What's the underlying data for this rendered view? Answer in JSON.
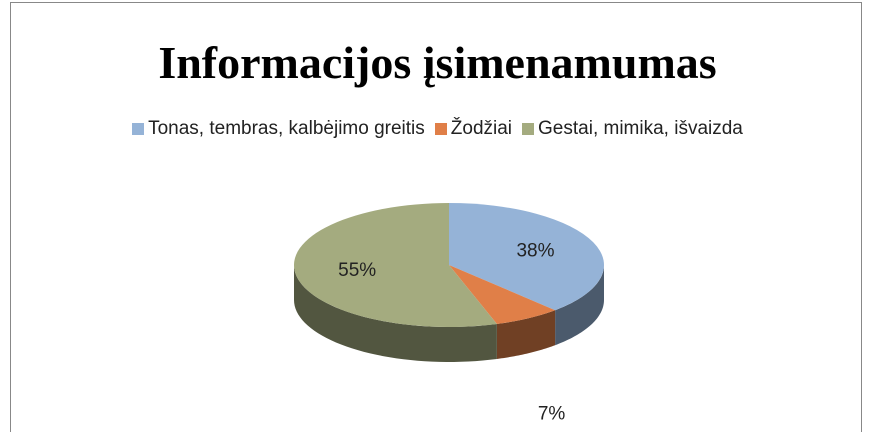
{
  "chart_data": {
    "type": "pie",
    "title": "Informacijos įsimenamumas",
    "categories": [
      "Tonas, tembras, kalbėjimo greitis",
      "Žodžiai",
      "Gestai, mimika, išvaizda"
    ],
    "values": [
      38,
      7,
      55
    ],
    "value_labels": [
      "38%",
      "7%",
      "55%"
    ],
    "colors": [
      "#95b3d7",
      "#e07f48",
      "#a4ab7f"
    ],
    "legend": "top"
  }
}
